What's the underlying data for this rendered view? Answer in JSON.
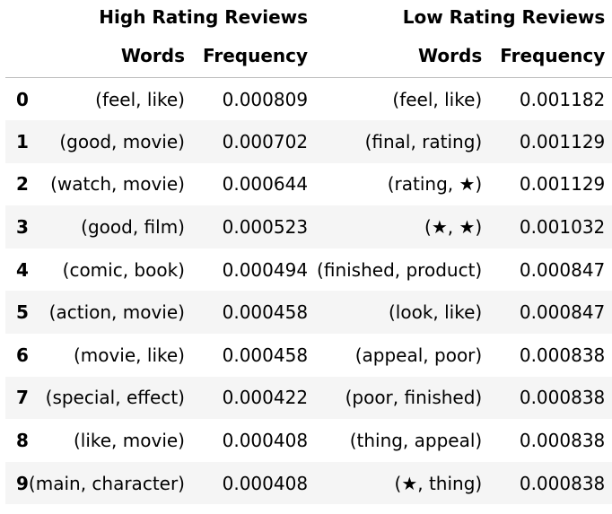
{
  "table": {
    "group_headers": [
      "High Rating Reviews",
      "Low Rating Reviews"
    ],
    "column_headers": [
      "Words",
      "Frequency",
      "Words",
      "Frequency"
    ],
    "rows": [
      {
        "index": "0",
        "high_words": "(feel, like)",
        "high_freq": "0.000809",
        "low_words": "(feel, like)",
        "low_freq": "0.001182"
      },
      {
        "index": "1",
        "high_words": "(good, movie)",
        "high_freq": "0.000702",
        "low_words": "(final, rating)",
        "low_freq": "0.001129"
      },
      {
        "index": "2",
        "high_words": "(watch, movie)",
        "high_freq": "0.000644",
        "low_words": "(rating, ★)",
        "low_freq": "0.001129"
      },
      {
        "index": "3",
        "high_words": "(good, film)",
        "high_freq": "0.000523",
        "low_words": "(★, ★)",
        "low_freq": "0.001032"
      },
      {
        "index": "4",
        "high_words": "(comic, book)",
        "high_freq": "0.000494",
        "low_words": "(finished, product)",
        "low_freq": "0.000847"
      },
      {
        "index": "5",
        "high_words": "(action, movie)",
        "high_freq": "0.000458",
        "low_words": "(look, like)",
        "low_freq": "0.000847"
      },
      {
        "index": "6",
        "high_words": "(movie, like)",
        "high_freq": "0.000458",
        "low_words": "(appeal, poor)",
        "low_freq": "0.000838"
      },
      {
        "index": "7",
        "high_words": "(special, effect)",
        "high_freq": "0.000422",
        "low_words": "(poor, finished)",
        "low_freq": "0.000838"
      },
      {
        "index": "8",
        "high_words": "(like, movie)",
        "high_freq": "0.000408",
        "low_words": "(thing, appeal)",
        "low_freq": "0.000838"
      },
      {
        "index": "9",
        "high_words": "(main, character)",
        "high_freq": "0.000408",
        "low_words": "(★, thing)",
        "low_freq": "0.000838"
      }
    ]
  }
}
